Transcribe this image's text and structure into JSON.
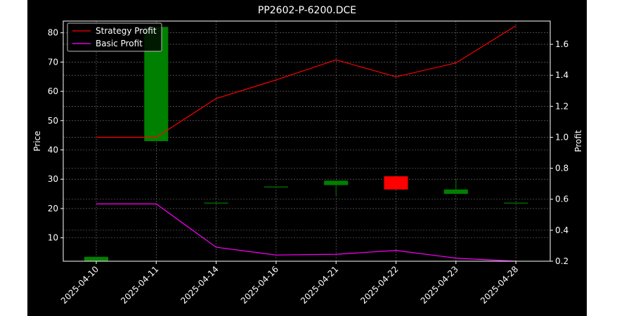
{
  "chart_data": {
    "type": "candlestick+line",
    "title": "PP2602-P-6200.DCE",
    "xlabel": "",
    "ylabel_left": "Price",
    "ylabel_right": "Profit",
    "categories": [
      "2025-04-10",
      "2025-04-11",
      "2025-04-14",
      "2025-04-16",
      "2025-04-21",
      "2025-04-22",
      "2025-04-23",
      "2025-04-28"
    ],
    "ylim_left": [
      2,
      84
    ],
    "ylim_right": [
      0.2,
      1.75
    ],
    "yticks_left": [
      "10",
      "20",
      "30",
      "40",
      "50",
      "60",
      "70",
      "80"
    ],
    "yticks_right": [
      "0.2",
      "0.4",
      "0.6",
      "0.8",
      "1.0",
      "1.2",
      "1.4",
      "1.6"
    ],
    "candles": [
      {
        "date": "2025-04-10",
        "open": 2.0,
        "close": 3.5,
        "high": 3.5,
        "low": 2.0
      },
      {
        "date": "2025-04-11",
        "open": 43.0,
        "close": 82.0,
        "high": 82.0,
        "low": 43.0
      },
      {
        "date": "2025-04-14",
        "open": 22.0,
        "close": 22.0,
        "high": 22.0,
        "low": 22.0
      },
      {
        "date": "2025-04-16",
        "open": 27.5,
        "close": 27.5,
        "high": 27.5,
        "low": 27.5
      },
      {
        "date": "2025-04-21",
        "open": 28.0,
        "close": 29.5,
        "high": 29.5,
        "low": 24.5
      },
      {
        "date": "2025-04-22",
        "open": 31.0,
        "close": 26.5,
        "high": 31.0,
        "low": 26.5
      },
      {
        "date": "2025-04-23",
        "open": 25.0,
        "close": 26.5,
        "high": 30.0,
        "low": 25.0
      },
      {
        "date": "2025-04-28",
        "open": 22.0,
        "close": 22.0,
        "high": 22.0,
        "low": 22.0
      }
    ],
    "series": [
      {
        "name": "Strategy Profit",
        "color": "#ff0000",
        "values": [
          1.0,
          1.0,
          1.25,
          1.37,
          1.5,
          1.39,
          1.48,
          1.72
        ]
      },
      {
        "name": "Basic Profit",
        "color": "#ff00ff",
        "values": [
          0.57,
          0.57,
          0.29,
          0.24,
          0.245,
          0.27,
          0.22,
          0.2
        ]
      }
    ],
    "up_color": "#008000",
    "down_color": "#ff0000",
    "background": "#000000",
    "grid": true,
    "legend_position": "top-left"
  }
}
